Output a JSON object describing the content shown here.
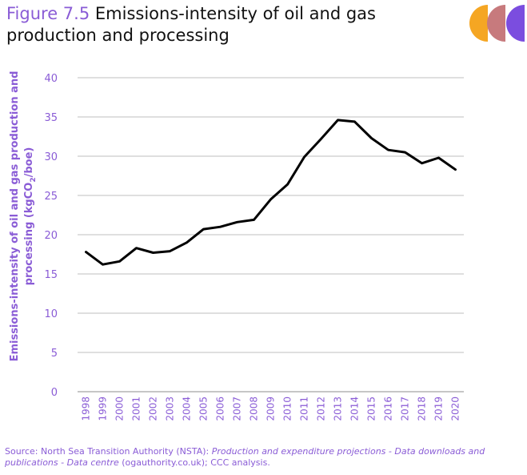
{
  "header": {
    "figure_label": "Figure 7.5",
    "title": "Emissions-intensity of oil and gas production and processing"
  },
  "colors": {
    "accent": "#8a5cd6",
    "line": "#000000",
    "grid": "#bfbfbf",
    "logo_orange": "#f5a623",
    "logo_rose": "#c77a7d",
    "logo_purple": "#7b4ddf"
  },
  "chart_data": {
    "type": "line",
    "title": "",
    "xlabel": "",
    "ylabel_line1": "Emissions-intensity of oil and gas production and",
    "ylabel_line2_prefix": "processing (kgCO",
    "ylabel_sub": "2",
    "ylabel_line2_suffix": "/boe)",
    "ylim": [
      0,
      40
    ],
    "yticks": [
      0,
      5,
      10,
      15,
      20,
      25,
      30,
      35,
      40
    ],
    "grid": true,
    "legend": "none",
    "x": [
      "1998",
      "1999",
      "2000",
      "2001",
      "2002",
      "2003",
      "2004",
      "2005",
      "2006",
      "2007",
      "2008",
      "2009",
      "2010",
      "2011",
      "2012",
      "2013",
      "2014",
      "2015",
      "2016",
      "2017",
      "2018",
      "2019",
      "2020"
    ],
    "series": [
      {
        "values": [
          17.8,
          16.2,
          16.6,
          18.3,
          17.7,
          17.9,
          19.0,
          20.7,
          21.0,
          21.6,
          21.9,
          24.5,
          26.4,
          29.9,
          32.2,
          34.6,
          34.4,
          32.3,
          30.8,
          30.5,
          29.1,
          29.8,
          28.3
        ]
      }
    ]
  },
  "source": {
    "prefix": "Source: North Sea Transition Authority (NSTA): ",
    "italic": "Production and expenditure projections - Data downloads and publications - Data centre",
    "suffix": " (ogauthority.co.uk); CCC analysis."
  }
}
